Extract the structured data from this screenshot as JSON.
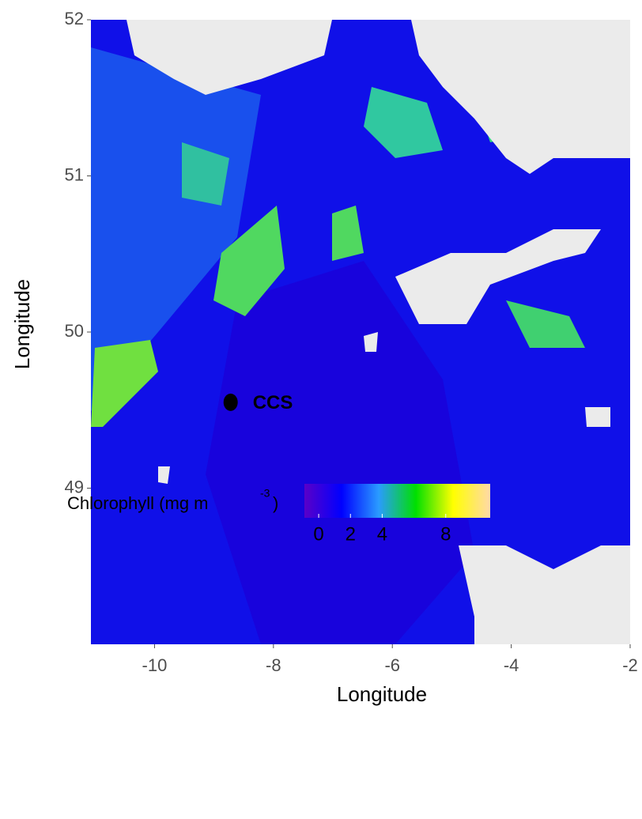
{
  "chart_data": {
    "type": "map",
    "x_label": "Longitude",
    "y_label": "Longitude",
    "xlim": [
      -11.07,
      -2
    ],
    "ylim": [
      48,
      52
    ],
    "xticks": [
      -10,
      -8,
      -6,
      -4,
      -2
    ],
    "yticks": [
      49,
      50,
      51,
      52
    ],
    "points": [
      {
        "name": "CCS",
        "lon": -8.72,
        "lat": 49.55,
        "color": "#000000"
      }
    ],
    "colorbar": {
      "title": {
        "text": "Chlorophyll (mg m",
        "superscript": "-3",
        "suffix": ")"
      },
      "lim": [
        -0.9,
        10.8
      ],
      "ticks": [
        0,
        2,
        4,
        8
      ],
      "colors": [
        "#5a00c8",
        "#0000ff",
        "#2a9bff",
        "#00e000",
        "#ffff00",
        "#ffd9a8"
      ]
    }
  }
}
